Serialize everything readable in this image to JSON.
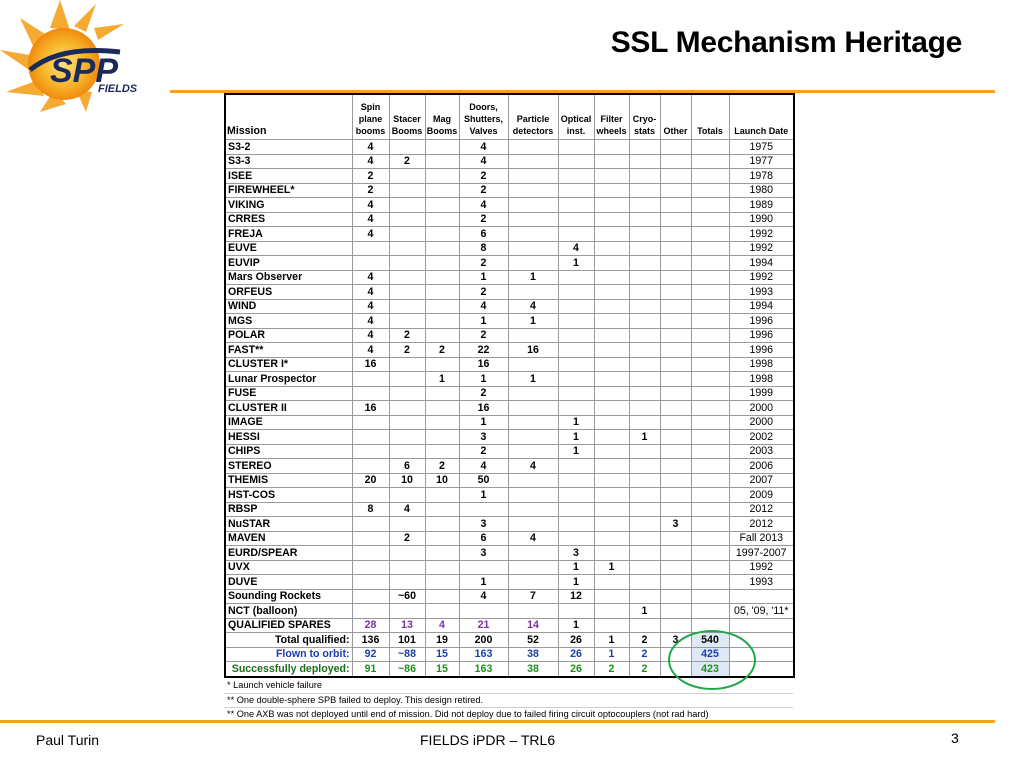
{
  "logo": {
    "text": "SPP",
    "subtext": "FIELDS"
  },
  "title": "SSL Mechanism Heritage",
  "colors": {
    "accent": "#f5a21c",
    "spares": "#7b2fa8",
    "flown": "#1a3eb0",
    "deployed": "#1f8f1f",
    "circle": "#1fa84a"
  },
  "table": {
    "headers": [
      "Mission",
      "Spin plane booms",
      "Stacer Booms",
      "Mag Booms",
      "Doors, Shutters, Valves",
      "Particle detectors",
      "Optical inst.",
      "Filter wheels",
      "Cryo-stats",
      "Other",
      "Totals",
      "Launch Date"
    ],
    "rows": [
      [
        "S3-2",
        "4",
        "",
        "",
        "4",
        "",
        "",
        "",
        "",
        "",
        "",
        "1975"
      ],
      [
        "S3-3",
        "4",
        "2",
        "",
        "4",
        "",
        "",
        "",
        "",
        "",
        "",
        "1977"
      ],
      [
        "ISEE",
        "2",
        "",
        "",
        "2",
        "",
        "",
        "",
        "",
        "",
        "",
        "1978"
      ],
      [
        "FIREWHEEL*",
        "2",
        "",
        "",
        "2",
        "",
        "",
        "",
        "",
        "",
        "",
        "1980"
      ],
      [
        "VIKING",
        "4",
        "",
        "",
        "4",
        "",
        "",
        "",
        "",
        "",
        "",
        "1989"
      ],
      [
        "CRRES",
        "4",
        "",
        "",
        "2",
        "",
        "",
        "",
        "",
        "",
        "",
        "1990"
      ],
      [
        "FREJA",
        "4",
        "",
        "",
        "6",
        "",
        "",
        "",
        "",
        "",
        "",
        "1992"
      ],
      [
        "EUVE",
        "",
        "",
        "",
        "8",
        "",
        "4",
        "",
        "",
        "",
        "",
        "1992"
      ],
      [
        "EUVIP",
        "",
        "",
        "",
        "2",
        "",
        "1",
        "",
        "",
        "",
        "",
        "1994"
      ],
      [
        "Mars Observer",
        "4",
        "",
        "",
        "1",
        "1",
        "",
        "",
        "",
        "",
        "",
        "1992"
      ],
      [
        "ORFEUS",
        "4",
        "",
        "",
        "2",
        "",
        "",
        "",
        "",
        "",
        "",
        "1993"
      ],
      [
        "WIND",
        "4",
        "",
        "",
        "4",
        "4",
        "",
        "",
        "",
        "",
        "",
        "1994"
      ],
      [
        "MGS",
        "4",
        "",
        "",
        "1",
        "1",
        "",
        "",
        "",
        "",
        "",
        "1996"
      ],
      [
        "POLAR",
        "4",
        "2",
        "",
        "2",
        "",
        "",
        "",
        "",
        "",
        "",
        "1996"
      ],
      [
        "FAST**",
        "4",
        "2",
        "2",
        "22",
        "16",
        "",
        "",
        "",
        "",
        "",
        "1996"
      ],
      [
        "CLUSTER I*",
        "16",
        "",
        "",
        "16",
        "",
        "",
        "",
        "",
        "",
        "",
        "1998"
      ],
      [
        "Lunar Prospector",
        "",
        "",
        "1",
        "1",
        "1",
        "",
        "",
        "",
        "",
        "",
        "1998"
      ],
      [
        "FUSE",
        "",
        "",
        "",
        "2",
        "",
        "",
        "",
        "",
        "",
        "",
        "1999"
      ],
      [
        "CLUSTER II",
        "16",
        "",
        "",
        "16",
        "",
        "",
        "",
        "",
        "",
        "",
        "2000"
      ],
      [
        "IMAGE",
        "",
        "",
        "",
        "1",
        "",
        "1",
        "",
        "",
        "",
        "",
        "2000"
      ],
      [
        "HESSI",
        "",
        "",
        "",
        "3",
        "",
        "1",
        "",
        "1",
        "",
        "",
        "2002"
      ],
      [
        "CHIPS",
        "",
        "",
        "",
        "2",
        "",
        "1",
        "",
        "",
        "",
        "",
        "2003"
      ],
      [
        "STEREO",
        "",
        "6",
        "2",
        "4",
        "4",
        "",
        "",
        "",
        "",
        "",
        "2006"
      ],
      [
        "THEMIS",
        "20",
        "10",
        "10",
        "50",
        "",
        "",
        "",
        "",
        "",
        "",
        "2007"
      ],
      [
        "HST-COS",
        "",
        "",
        "",
        "1",
        "",
        "",
        "",
        "",
        "",
        "",
        "2009"
      ],
      [
        "RBSP",
        "8",
        "4",
        "",
        "",
        "",
        "",
        "",
        "",
        "",
        "",
        "2012"
      ],
      [
        "NuSTAR",
        "",
        "",
        "",
        "3",
        "",
        "",
        "",
        "",
        "3",
        "",
        "2012"
      ],
      [
        "MAVEN",
        "",
        "2",
        "",
        "6",
        "4",
        "",
        "",
        "",
        "",
        "",
        "Fall 2013"
      ],
      [
        "EURD/SPEAR",
        "",
        "",
        "",
        "3",
        "",
        "3",
        "",
        "",
        "",
        "",
        "1997-2007"
      ],
      [
        "UVX",
        "",
        "",
        "",
        "",
        "",
        "1",
        "1",
        "",
        "",
        "",
        "1992"
      ],
      [
        "DUVE",
        "",
        "",
        "",
        "1",
        "",
        "1",
        "",
        "",
        "",
        "",
        "1993"
      ],
      [
        "Sounding Rockets",
        "",
        "~60",
        "",
        "4",
        "7",
        "12",
        "",
        "",
        "",
        "",
        ""
      ],
      [
        "NCT (balloon)",
        "",
        "",
        "",
        "",
        "",
        "",
        "",
        "1",
        "",
        "",
        "05, '09, '11*"
      ]
    ],
    "spares": [
      "QUALIFIED SPARES",
      "28",
      "13",
      "4",
      "21",
      "14",
      "1",
      "",
      "",
      "",
      "",
      ""
    ],
    "summary": [
      {
        "label": "Total qualified:",
        "values": [
          "136",
          "101",
          "19",
          "200",
          "52",
          "26",
          "1",
          "2",
          "3",
          "540"
        ]
      },
      {
        "label": "Flown to orbit:",
        "values": [
          "92",
          "~88",
          "15",
          "163",
          "38",
          "26",
          "1",
          "2",
          "",
          "425"
        ]
      },
      {
        "label": "Successfully deployed:",
        "values": [
          "91",
          "~86",
          "15",
          "163",
          "38",
          "26",
          "2",
          "2",
          "",
          "423"
        ]
      }
    ]
  },
  "notes": [
    "*  Launch vehicle failure",
    "** One double-sphere SPB failed to deploy. This design retired.",
    "** One AXB was not deployed until end of mission. Did not deploy due to failed firing circuit optocouplers (not rad hard)"
  ],
  "footer": {
    "author": "Paul Turin",
    "center": "FIELDS iPDR – TRL6",
    "page": "3"
  }
}
